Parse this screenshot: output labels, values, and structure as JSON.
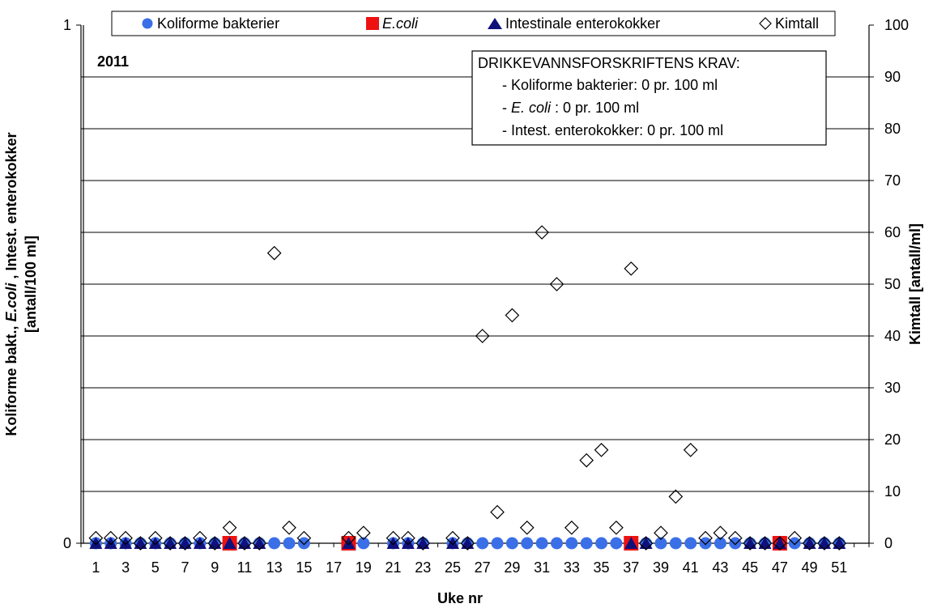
{
  "chart_data": {
    "type": "scatter",
    "year_label": "2011",
    "xlabel": "Uke nr",
    "ylabel_left": [
      "Koliforme bakt., ",
      "E.coli",
      " , Intest. enterokokker",
      "[antall/100 ml]"
    ],
    "ylabel_right": "Kimtall  [antall/ml]",
    "x_ticks": [
      "1",
      "3",
      "5",
      "7",
      "9",
      "11",
      "13",
      "15",
      "17",
      "19",
      "21",
      "23",
      "25",
      "27",
      "29",
      "31",
      "33",
      "35",
      "37",
      "39",
      "41",
      "43",
      "45",
      "47",
      "49",
      "51"
    ],
    "y_left_ticks": [
      "0",
      "1"
    ],
    "y_left_lim": [
      0,
      1
    ],
    "y_right_ticks": [
      "0",
      "10",
      "20",
      "30",
      "40",
      "50",
      "60",
      "70",
      "80",
      "90",
      "100"
    ],
    "y_right_lim": [
      0,
      100
    ],
    "x_lim": [
      0,
      53
    ],
    "grid": true,
    "legend_position": "top",
    "requirements": {
      "title": "DRIKKEVANNSFORSKRIFTENS KRAV:",
      "lines": [
        {
          "prefix": "- Koliforme bakterier",
          "suffix": ": 0 pr. 100 ml"
        },
        {
          "prefix": "- ",
          "italic": "E. coli",
          "suffix": " : 0 pr. 100 ml"
        },
        {
          "prefix": "- Intest. enterokokker",
          "suffix": ": 0 pr. 100 ml"
        }
      ]
    },
    "series": [
      {
        "name": "Koliforme bakterier",
        "axis": "left",
        "marker": "circle",
        "color": "#3b6fe8",
        "points": [
          [
            1,
            0
          ],
          [
            2,
            0
          ],
          [
            3,
            0
          ],
          [
            4,
            0
          ],
          [
            5,
            0
          ],
          [
            6,
            0
          ],
          [
            7,
            0
          ],
          [
            8,
            0
          ],
          [
            9,
            0
          ],
          [
            10,
            0
          ],
          [
            11,
            0
          ],
          [
            12,
            0
          ],
          [
            13,
            0
          ],
          [
            14,
            0
          ],
          [
            15,
            0
          ],
          [
            18,
            0
          ],
          [
            19,
            0
          ],
          [
            21,
            0
          ],
          [
            22,
            0
          ],
          [
            23,
            0
          ],
          [
            25,
            0
          ],
          [
            26,
            0
          ],
          [
            27,
            0
          ],
          [
            28,
            0
          ],
          [
            29,
            0
          ],
          [
            30,
            0
          ],
          [
            31,
            0
          ],
          [
            32,
            0
          ],
          [
            33,
            0
          ],
          [
            34,
            0
          ],
          [
            35,
            0
          ],
          [
            36,
            0
          ],
          [
            37,
            0
          ],
          [
            38,
            0
          ],
          [
            39,
            0
          ],
          [
            40,
            0
          ],
          [
            41,
            0
          ],
          [
            42,
            0
          ],
          [
            43,
            0
          ],
          [
            44,
            0
          ],
          [
            45,
            0
          ],
          [
            46,
            0
          ],
          [
            47,
            0
          ],
          [
            48,
            0
          ],
          [
            49,
            0
          ],
          [
            50,
            0
          ],
          [
            51,
            0
          ]
        ]
      },
      {
        "name": "E.coli",
        "italic": true,
        "axis": "left",
        "marker": "square",
        "color": "#ee1111",
        "points": [
          [
            10,
            0
          ],
          [
            18,
            0
          ],
          [
            37,
            0
          ],
          [
            47,
            0
          ]
        ]
      },
      {
        "name": "Intestinale enterokokker",
        "axis": "left",
        "marker": "triangle",
        "color": "#10107a",
        "points": [
          [
            1,
            0
          ],
          [
            2,
            0
          ],
          [
            3,
            0
          ],
          [
            4,
            0
          ],
          [
            5,
            0
          ],
          [
            6,
            0
          ],
          [
            7,
            0
          ],
          [
            8,
            0
          ],
          [
            9,
            0
          ],
          [
            10,
            0
          ],
          [
            11,
            0
          ],
          [
            12,
            0
          ],
          [
            18,
            0
          ],
          [
            21,
            0
          ],
          [
            22,
            0
          ],
          [
            23,
            0
          ],
          [
            25,
            0
          ],
          [
            26,
            0
          ],
          [
            37,
            0
          ],
          [
            38,
            0
          ],
          [
            45,
            0
          ],
          [
            46,
            0
          ],
          [
            47,
            0
          ],
          [
            49,
            0
          ],
          [
            50,
            0
          ],
          [
            51,
            0
          ]
        ]
      },
      {
        "name": "Kimtall",
        "axis": "right",
        "marker": "diamond",
        "color": "#000000",
        "points": [
          [
            1,
            1
          ],
          [
            2,
            1
          ],
          [
            3,
            1
          ],
          [
            4,
            0
          ],
          [
            5,
            1
          ],
          [
            6,
            0
          ],
          [
            7,
            0
          ],
          [
            8,
            1
          ],
          [
            9,
            0
          ],
          [
            10,
            3
          ],
          [
            11,
            0
          ],
          [
            12,
            0
          ],
          [
            13,
            56
          ],
          [
            14,
            3
          ],
          [
            15,
            1
          ],
          [
            18,
            1
          ],
          [
            19,
            2
          ],
          [
            21,
            1
          ],
          [
            22,
            1
          ],
          [
            23,
            0
          ],
          [
            25,
            1
          ],
          [
            26,
            0
          ],
          [
            27,
            40
          ],
          [
            28,
            6
          ],
          [
            29,
            44
          ],
          [
            30,
            3
          ],
          [
            31,
            60
          ],
          [
            32,
            50
          ],
          [
            33,
            3
          ],
          [
            34,
            16
          ],
          [
            35,
            18
          ],
          [
            36,
            3
          ],
          [
            37,
            53
          ],
          [
            38,
            0
          ],
          [
            39,
            2
          ],
          [
            40,
            9
          ],
          [
            41,
            18
          ],
          [
            42,
            1
          ],
          [
            43,
            2
          ],
          [
            44,
            1
          ],
          [
            45,
            0
          ],
          [
            46,
            0
          ],
          [
            47,
            0
          ],
          [
            48,
            1
          ],
          [
            49,
            0
          ],
          [
            50,
            0
          ],
          [
            51,
            0
          ]
        ]
      }
    ]
  }
}
